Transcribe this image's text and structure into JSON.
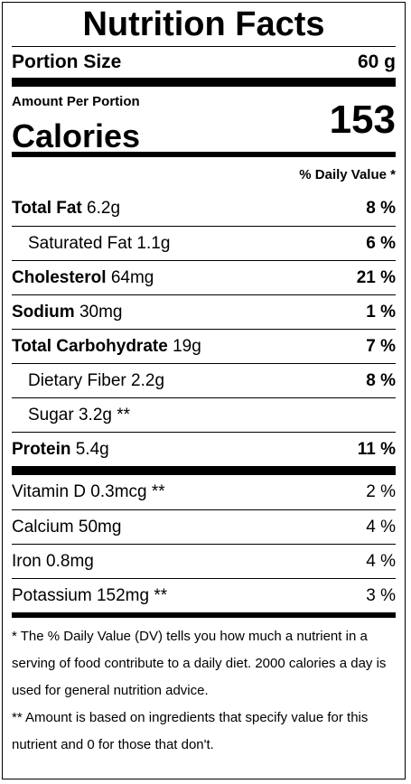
{
  "title": "Nutrition Facts",
  "portion": {
    "label": "Portion Size",
    "value": "60 g"
  },
  "amount_per_portion": "Amount Per Portion",
  "calories": {
    "label": "Calories",
    "value": "153"
  },
  "daily_value_header": "% Daily Value *",
  "nutrients": [
    {
      "name": "Total Fat",
      "amount": "6.2g",
      "dv": "8 %",
      "bold": true,
      "indent": false
    },
    {
      "name": "Saturated Fat",
      "amount": "1.1g",
      "dv": "6 %",
      "bold": false,
      "indent": true
    },
    {
      "name": "Cholesterol",
      "amount": "64mg",
      "dv": "21 %",
      "bold": true,
      "indent": false
    },
    {
      "name": "Sodium",
      "amount": "30mg",
      "dv": "1 %",
      "bold": true,
      "indent": false
    },
    {
      "name": "Total Carbohydrate",
      "amount": "19g",
      "dv": "7 %",
      "bold": true,
      "indent": false
    },
    {
      "name": "Dietary Fiber",
      "amount": "2.2g",
      "dv": "8 %",
      "bold": false,
      "indent": true
    },
    {
      "name": "Sugar",
      "amount": "3.2g **",
      "dv": "",
      "bold": false,
      "indent": true
    },
    {
      "name": "Protein",
      "amount": "5.4g",
      "dv": "11 %",
      "bold": true,
      "indent": false
    }
  ],
  "vitamins": [
    {
      "name": "Vitamin D",
      "amount": "0.3mcg **",
      "dv": "2 %"
    },
    {
      "name": "Calcium",
      "amount": "50mg",
      "dv": "4 %"
    },
    {
      "name": "Iron",
      "amount": "0.8mg",
      "dv": "4 %"
    },
    {
      "name": "Potassium",
      "amount": "152mg **",
      "dv": "3 %"
    }
  ],
  "footnotes": [
    "* The % Daily Value (DV) tells you how much a nutrient in a serving of food contribute to a daily diet. 2000 calories a day is used for general nutrition advice.",
    "** Amount is based on ingredients that specify value for this nutrient and 0 for those that don't."
  ]
}
